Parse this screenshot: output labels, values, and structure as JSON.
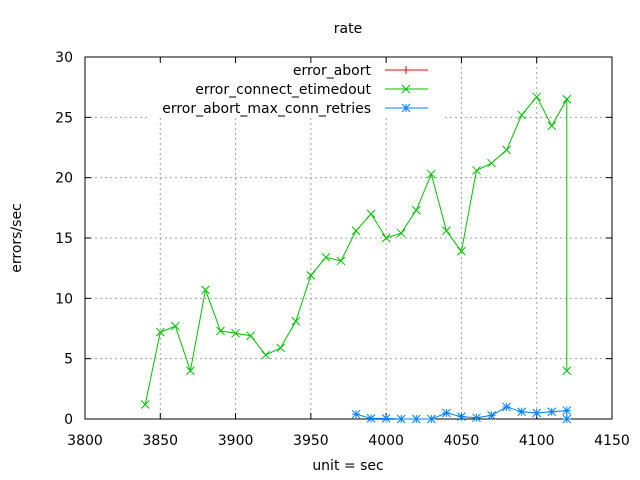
{
  "chart_data": {
    "type": "line",
    "title": "rate",
    "xlabel": "unit = sec",
    "ylabel": "errors/sec",
    "xlim": [
      3800,
      4150
    ],
    "ylim": [
      0,
      30
    ],
    "xticks": [
      3800,
      3850,
      3900,
      3950,
      4000,
      4050,
      4100,
      4150
    ],
    "yticks": [
      0,
      5,
      10,
      15,
      20,
      25,
      30
    ],
    "grid": true,
    "legend_position": "top-right",
    "series": [
      {
        "name": "error_abort",
        "color": "#ff0000",
        "marker": "plus",
        "x": [],
        "y": []
      },
      {
        "name": "error_connect_etimedout",
        "color": "#00c000",
        "marker": "cross",
        "x": [
          3840,
          3850,
          3860,
          3870,
          3880,
          3890,
          3900,
          3910,
          3920,
          3930,
          3940,
          3950,
          3960,
          3970,
          3980,
          3990,
          4000,
          4010,
          4020,
          4030,
          4040,
          4050,
          4060,
          4070,
          4080,
          4090,
          4100,
          4110,
          4120,
          4120
        ],
        "y": [
          1.2,
          7.2,
          7.7,
          4.0,
          10.7,
          7.3,
          7.1,
          6.9,
          5.3,
          5.9,
          8.1,
          11.9,
          13.4,
          13.1,
          15.6,
          17.0,
          15.0,
          15.4,
          17.3,
          20.3,
          15.6,
          13.9,
          20.6,
          21.2,
          22.3,
          25.2,
          26.7,
          24.3,
          26.5,
          4.0
        ]
      },
      {
        "name": "error_abort_max_conn_retries",
        "color": "#0080ff",
        "marker": "star",
        "x": [
          3980,
          3990,
          4000,
          4010,
          4020,
          4030,
          4040,
          4050,
          4060,
          4070,
          4080,
          4090,
          4100,
          4110,
          4120,
          4120
        ],
        "y": [
          0.4,
          0.05,
          0.05,
          0.0,
          0.0,
          0.0,
          0.5,
          0.2,
          0.1,
          0.3,
          1.0,
          0.6,
          0.5,
          0.6,
          0.7,
          0.0
        ]
      }
    ]
  }
}
